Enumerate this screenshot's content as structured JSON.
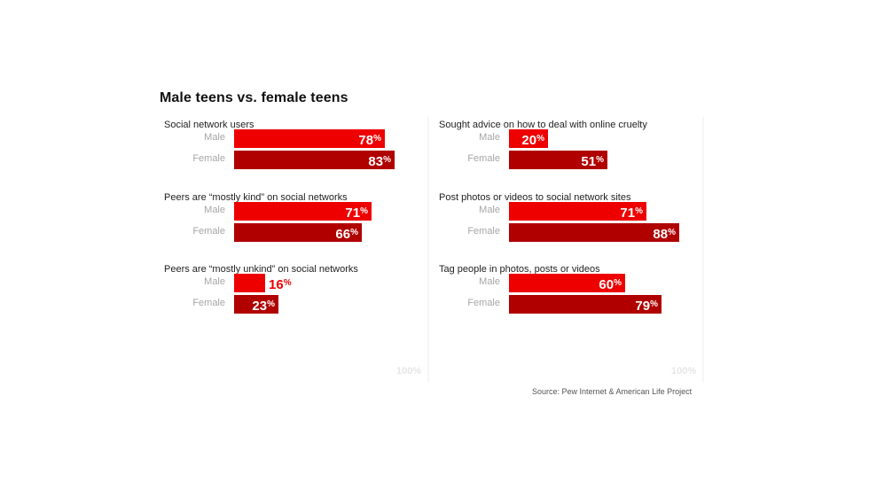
{
  "chart_data": {
    "type": "bar",
    "title": "Male teens vs. female teens",
    "colors": {
      "male": "#ee0000",
      "female": "#b00000"
    },
    "row_labels": [
      "Male",
      "Female"
    ],
    "scale_label": "100%",
    "source": "Source: Pew Internet & American Life Project",
    "xlim": [
      0,
      100
    ],
    "groups": [
      {
        "column": "left",
        "label": "Social network users",
        "male": 78,
        "female": 83
      },
      {
        "column": "left",
        "label": "Peers are “mostly kind” on social networks",
        "male": 71,
        "female": 66
      },
      {
        "column": "left",
        "label": "Peers are “mostly unkind” on social networks",
        "male": 16,
        "female": 23
      },
      {
        "column": "right",
        "label": "Sought advice on how to deal with online cruelty",
        "male": 20,
        "female": 51
      },
      {
        "column": "right",
        "label": "Post photos or videos to social network sites",
        "male": 71,
        "female": 88
      },
      {
        "column": "right",
        "label": "Tag people in photos, posts or videos",
        "male": 60,
        "female": 79
      }
    ]
  }
}
